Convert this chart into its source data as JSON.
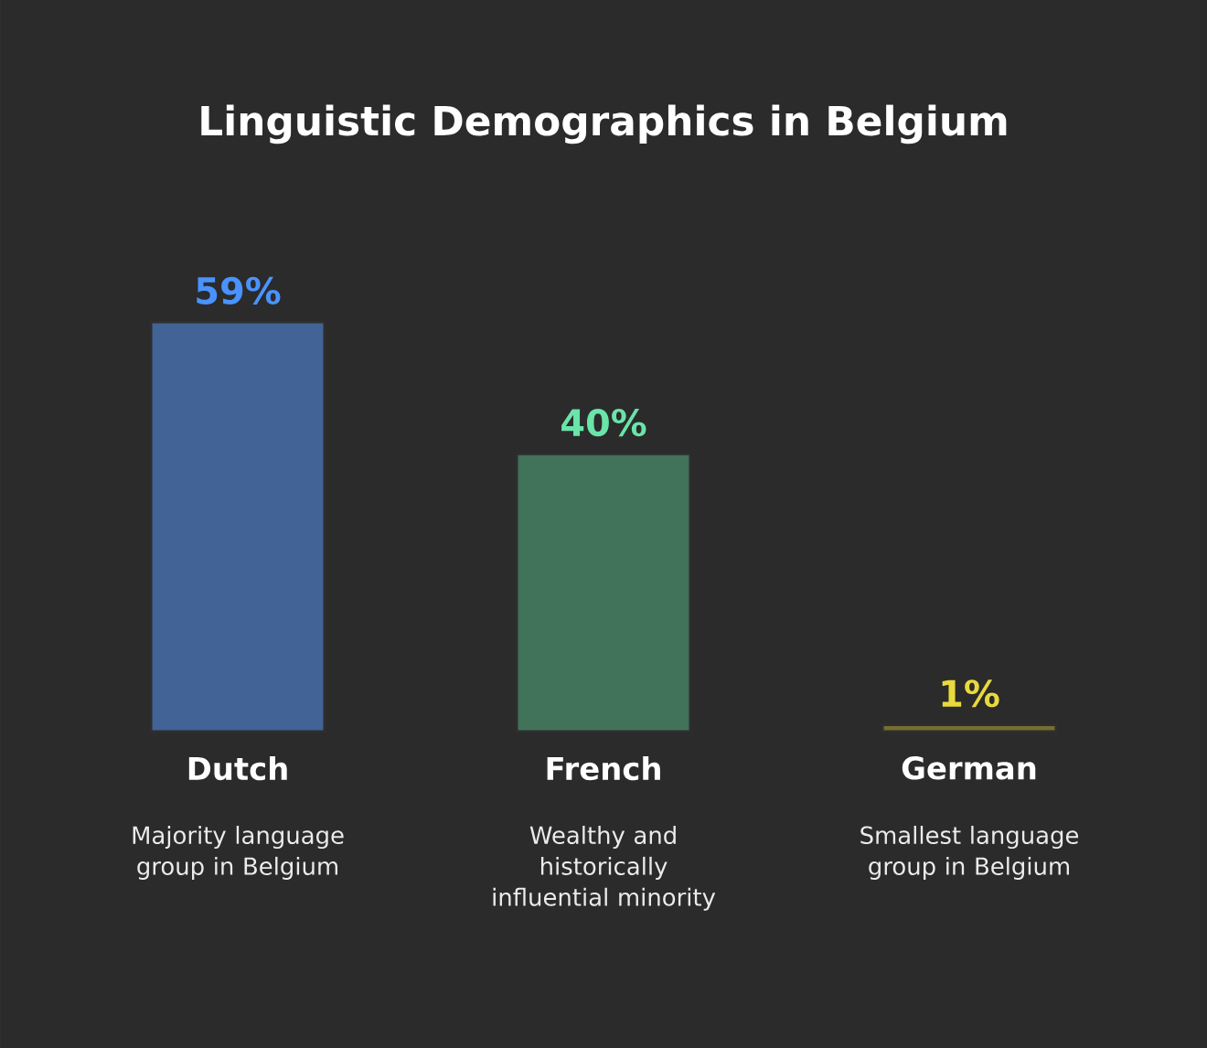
{
  "chart_data": {
    "type": "bar",
    "title": "Linguistic Demographics in Belgium",
    "categories": [
      "Dutch",
      "French",
      "German"
    ],
    "values": [
      59,
      40,
      1
    ],
    "colors": [
      "#416396",
      "#41725a",
      "#756e30"
    ],
    "value_labels": [
      "59%",
      "40%",
      "1%"
    ],
    "annotations": [
      "Majority language group in Belgium",
      "Wealthy and historically influential minority",
      "Smallest language group in Belgium"
    ],
    "tick_labels": "x"
  }
}
